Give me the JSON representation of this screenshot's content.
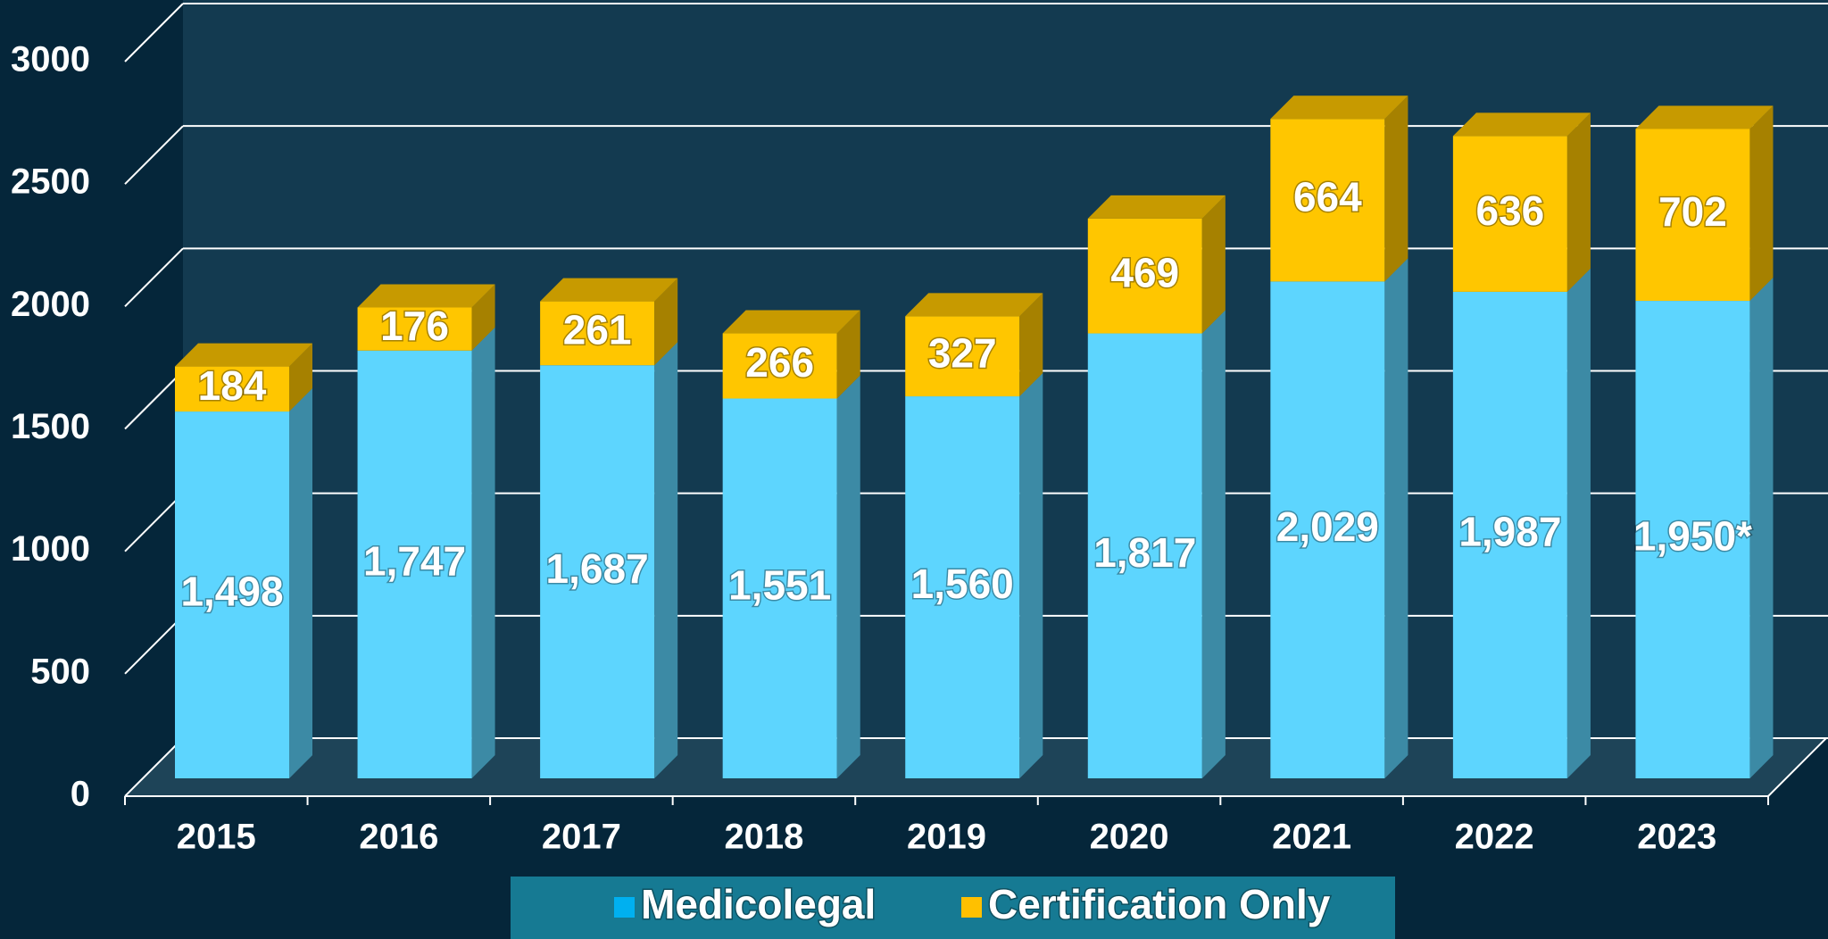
{
  "chart_data": {
    "type": "bar",
    "stacked": true,
    "categories": [
      "2015",
      "2016",
      "2017",
      "2018",
      "2019",
      "2020",
      "2021",
      "2022",
      "2023"
    ],
    "series": [
      {
        "name": "Medicolegal",
        "color": "#5dd5fe",
        "legend_color": "#00b0f0",
        "values": [
          1498,
          1747,
          1687,
          1551,
          1560,
          1817,
          2029,
          1987,
          1950
        ],
        "value_labels": [
          "1,498",
          "1,747",
          "1,687",
          "1,551",
          "1,560",
          "1,817",
          "2,029",
          "1,987",
          "1,950*"
        ]
      },
      {
        "name": "Certification Only",
        "color": "#ffc600",
        "legend_color": "#ffc000",
        "values": [
          184,
          176,
          261,
          266,
          327,
          469,
          664,
          636,
          702
        ]
      }
    ],
    "ylim": [
      0,
      3000
    ],
    "yticks": [
      0,
      500,
      1000,
      1500,
      2000,
      2500,
      3000
    ],
    "grid": true,
    "legend": "bottom"
  }
}
